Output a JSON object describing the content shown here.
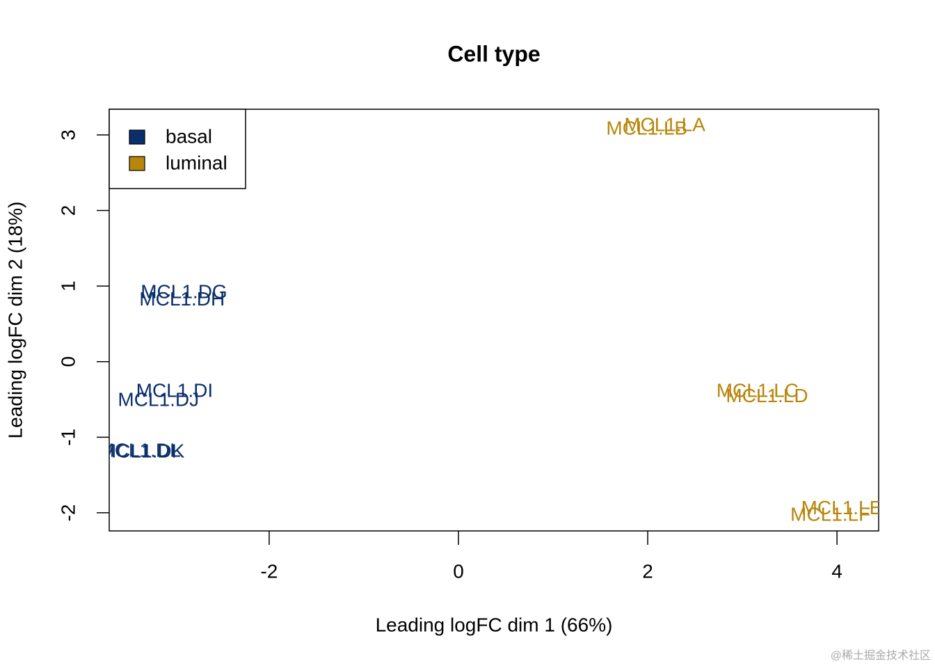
{
  "chart_data": {
    "type": "scatter",
    "title": "Cell type",
    "x_label": "Leading logFC dim 1 (66%)",
    "y_label": "Leading logFC dim 2 (18%)",
    "xlim": [
      -3.69,
      4.44
    ],
    "ylim": [
      -2.24,
      3.34
    ],
    "xticks": [
      -2,
      0,
      2,
      4
    ],
    "yticks": [
      -2,
      -1,
      0,
      1,
      2,
      3
    ],
    "legend": "top-left",
    "series": [
      {
        "name": "basal",
        "color": "#0b2f6b",
        "labels": [
          "MCL1.DG",
          "MCL1.DH",
          "MCL1.DI",
          "MCL1.DJ",
          "MCL1.DK",
          "MCL1.DL"
        ],
        "x": [
          -2.9,
          -2.92,
          -3.0,
          -3.17,
          -3.34,
          -3.37
        ],
        "y": [
          0.91,
          0.81,
          -0.4,
          -0.52,
          -1.2,
          -1.19
        ]
      },
      {
        "name": "luminal",
        "color": "#b8860b",
        "labels": [
          "MCL1.LA",
          "MCL1.LB",
          "MCL1.LC",
          "MCL1.LD",
          "MCL1.LE",
          "MCL1.LF"
        ],
        "x": [
          2.18,
          1.99,
          3.16,
          3.26,
          4.05,
          3.93
        ],
        "y": [
          3.12,
          3.07,
          -0.4,
          -0.47,
          -1.95,
          -2.04
        ]
      }
    ]
  },
  "watermark": "@稀土掘金技术社区"
}
